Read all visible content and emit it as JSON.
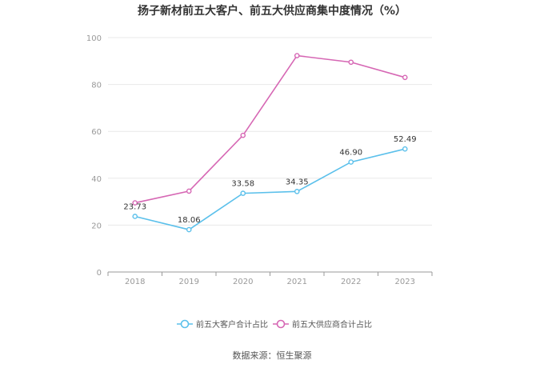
{
  "chart_data": {
    "type": "line",
    "title": "扬子新材前五大客户、前五大供应商集中度情况（%）",
    "categories": [
      "2018",
      "2019",
      "2020",
      "2021",
      "2022",
      "2023"
    ],
    "ylim": [
      0,
      100
    ],
    "yticks": [
      "0",
      "20",
      "40",
      "60",
      "80",
      "100"
    ],
    "grid": true,
    "legend_position": "bottom",
    "series": [
      {
        "name": "前五大客户合计占比",
        "color": "#5bc0eb",
        "values": [
          23.73,
          18.06,
          33.58,
          34.35,
          46.9,
          52.49
        ],
        "labels": [
          "23.73",
          "18.06",
          "33.58",
          "34.35",
          "46.90",
          "52.49"
        ]
      },
      {
        "name": "前五大供应商合计占比",
        "color": "#d667b4",
        "values": [
          29.5,
          34.5,
          58.3,
          92.3,
          89.5,
          83.0
        ]
      }
    ]
  },
  "footer": {
    "source": "数据来源：恒生聚源"
  }
}
